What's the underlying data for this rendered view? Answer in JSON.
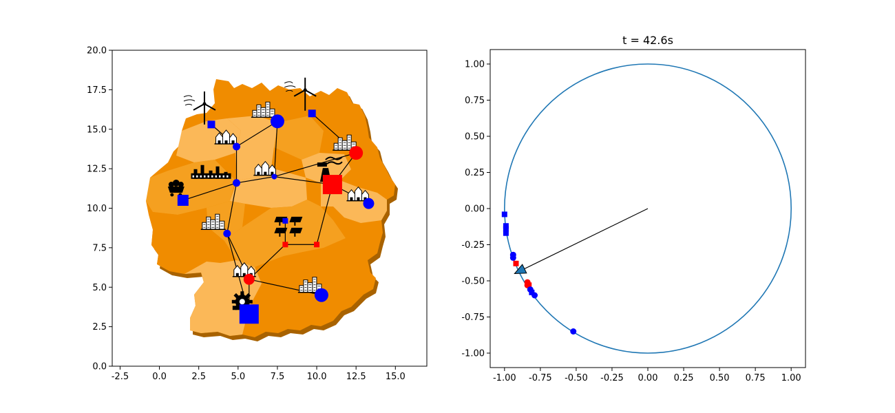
{
  "colors": {
    "region_dark": "#f08c00",
    "region_mid": "#f5a020",
    "region_light": "#fbb858",
    "region_shadow": "#a86200",
    "node_blue": "#0000ff",
    "node_red": "#ff0000",
    "circle": "#1f77b4",
    "line": "#000000"
  },
  "chart_data": [
    {
      "type": "scatter",
      "title": "",
      "xlim": [
        -3,
        17
      ],
      "ylim": [
        0,
        20
      ],
      "xticks": [
        "-2.5",
        "0.0",
        "2.5",
        "5.0",
        "7.5",
        "10.0",
        "12.5",
        "15.0"
      ],
      "yticks": [
        "0.0",
        "2.5",
        "5.0",
        "7.5",
        "10.0",
        "12.5",
        "15.0",
        "17.5",
        "20.0"
      ],
      "xtick_values": [
        -2.5,
        0,
        2.5,
        5,
        7.5,
        10,
        12.5,
        15
      ],
      "ytick_values": [
        0,
        2.5,
        5,
        7.5,
        10,
        12.5,
        15,
        17.5,
        20
      ],
      "grid": false,
      "nodes": [
        {
          "id": "n1",
          "x": 3.3,
          "y": 15.3,
          "shape": "square",
          "color": "blue",
          "size": "small",
          "icon": "wind-turbine"
        },
        {
          "id": "n2",
          "x": 9.7,
          "y": 16.0,
          "shape": "square",
          "color": "blue",
          "size": "small",
          "icon": "wind-turbine"
        },
        {
          "id": "n3",
          "x": 7.5,
          "y": 15.5,
          "shape": "circle",
          "color": "blue",
          "size": "large",
          "icon": "city"
        },
        {
          "id": "n4",
          "x": 4.9,
          "y": 13.9,
          "shape": "circle",
          "color": "blue",
          "size": "small",
          "icon": "village"
        },
        {
          "id": "n5",
          "x": 12.5,
          "y": 13.5,
          "shape": "circle",
          "color": "red",
          "size": "large",
          "icon": "city"
        },
        {
          "id": "n6",
          "x": 7.3,
          "y": 12.0,
          "shape": "circle",
          "color": "blue",
          "size": "tiny",
          "icon": "village"
        },
        {
          "id": "n7",
          "x": 4.9,
          "y": 11.6,
          "shape": "circle",
          "color": "blue",
          "size": "small",
          "icon": "industry"
        },
        {
          "id": "n8",
          "x": 11.0,
          "y": 11.5,
          "shape": "square",
          "color": "red",
          "size": "large",
          "icon": "power-plant"
        },
        {
          "id": "n9",
          "x": 1.5,
          "y": 10.5,
          "shape": "square",
          "color": "blue",
          "size": "medium",
          "icon": "coal"
        },
        {
          "id": "n10",
          "x": 13.3,
          "y": 10.3,
          "shape": "circle",
          "color": "blue",
          "size": "medium",
          "icon": "village"
        },
        {
          "id": "n11",
          "x": 8.0,
          "y": 9.2,
          "shape": "square",
          "color": "blue",
          "size": "tiny",
          "icon": "solar"
        },
        {
          "id": "n12",
          "x": 4.3,
          "y": 8.4,
          "shape": "circle",
          "color": "blue",
          "size": "small",
          "icon": "city"
        },
        {
          "id": "n13",
          "x": 8.0,
          "y": 7.7,
          "shape": "square",
          "color": "red",
          "size": "tiny",
          "icon": "solar"
        },
        {
          "id": "n14",
          "x": 10.0,
          "y": 7.7,
          "shape": "square",
          "color": "red",
          "size": "tiny",
          "icon": "solar"
        },
        {
          "id": "n15",
          "x": 5.7,
          "y": 5.5,
          "shape": "circle",
          "color": "red",
          "size": "medium",
          "icon": "village"
        },
        {
          "id": "n16",
          "x": 10.3,
          "y": 4.5,
          "shape": "circle",
          "color": "blue",
          "size": "large",
          "icon": "city"
        },
        {
          "id": "n17",
          "x": 5.7,
          "y": 3.3,
          "shape": "square",
          "color": "blue",
          "size": "large",
          "icon": "factory-gear"
        }
      ],
      "edges": [
        [
          "n1",
          "n4"
        ],
        [
          "n4",
          "n3"
        ],
        [
          "n3",
          "n6"
        ],
        [
          "n4",
          "n7"
        ],
        [
          "n2",
          "n5"
        ],
        [
          "n5",
          "n8"
        ],
        [
          "n6",
          "n5"
        ],
        [
          "n6",
          "n8"
        ],
        [
          "n7",
          "n6"
        ],
        [
          "n7",
          "n9"
        ],
        [
          "n8",
          "n10"
        ],
        [
          "n8",
          "n14"
        ],
        [
          "n14",
          "n13"
        ],
        [
          "n13",
          "n11"
        ],
        [
          "n13",
          "n15"
        ],
        [
          "n7",
          "n12"
        ],
        [
          "n12",
          "n15"
        ],
        [
          "n15",
          "n16"
        ],
        [
          "n15",
          "n17"
        ],
        [
          "n12",
          "n17"
        ]
      ]
    },
    {
      "type": "scatter",
      "title": "t = 42.6s",
      "xlim": [
        -1.1,
        1.1
      ],
      "ylim": [
        -1.1,
        1.1
      ],
      "xticks": [
        "-1.00",
        "-0.75",
        "-0.50",
        "-0.25",
        "0.00",
        "0.25",
        "0.50",
        "0.75",
        "1.00"
      ],
      "yticks": [
        "-1.00",
        "-0.75",
        "-0.50",
        "-0.25",
        "0.00",
        "0.25",
        "0.50",
        "0.75",
        "1.00"
      ],
      "xtick_values": [
        -1,
        -0.75,
        -0.5,
        -0.25,
        0,
        0.25,
        0.5,
        0.75,
        1
      ],
      "ytick_values": [
        -1,
        -0.75,
        -0.5,
        -0.25,
        0,
        0.25,
        0.5,
        0.75,
        1
      ],
      "grid": false,
      "unit_circle": true,
      "arrow": {
        "from": [
          0,
          0
        ],
        "to": [
          -0.93,
          -0.45
        ]
      },
      "points": [
        {
          "x": -1.0,
          "y": -0.04,
          "shape": "square",
          "color": "blue"
        },
        {
          "x": -0.99,
          "y": -0.12,
          "shape": "square",
          "color": "blue"
        },
        {
          "x": -0.99,
          "y": -0.14,
          "shape": "square",
          "color": "blue"
        },
        {
          "x": -0.99,
          "y": -0.17,
          "shape": "square",
          "color": "blue"
        },
        {
          "x": -0.94,
          "y": -0.32,
          "shape": "circle",
          "color": "blue"
        },
        {
          "x": -0.94,
          "y": -0.34,
          "shape": "circle",
          "color": "blue"
        },
        {
          "x": -0.92,
          "y": -0.38,
          "shape": "square",
          "color": "red"
        },
        {
          "x": -0.84,
          "y": -0.51,
          "shape": "circle",
          "color": "red"
        },
        {
          "x": -0.84,
          "y": -0.53,
          "shape": "circle",
          "color": "red"
        },
        {
          "x": -0.83,
          "y": -0.53,
          "shape": "square",
          "color": "red"
        },
        {
          "x": -0.82,
          "y": -0.56,
          "shape": "circle",
          "color": "blue"
        },
        {
          "x": -0.81,
          "y": -0.58,
          "shape": "square",
          "color": "blue"
        },
        {
          "x": -0.79,
          "y": -0.6,
          "shape": "circle",
          "color": "blue"
        },
        {
          "x": -0.52,
          "y": -0.85,
          "shape": "circle",
          "color": "blue"
        }
      ]
    }
  ]
}
